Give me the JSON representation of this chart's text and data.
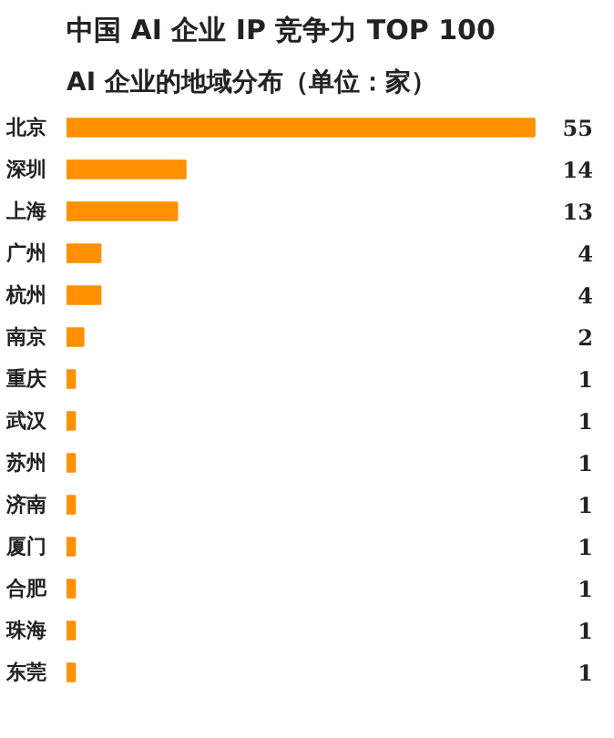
{
  "chart_data": {
    "type": "bar",
    "orientation": "horizontal",
    "title": "中国 AI 企业 IP 竞争力 TOP 100",
    "subtitle": "AI 企业的地域分布（单位：家）",
    "categories": [
      "北京",
      "深圳",
      "上海",
      "广州",
      "杭州",
      "南京",
      "重庆",
      "武汉",
      "苏州",
      "济南",
      "厦门",
      "合肥",
      "珠海",
      "东莞"
    ],
    "values": [
      55,
      14,
      13,
      4,
      4,
      2,
      1,
      1,
      1,
      1,
      1,
      1,
      1,
      1
    ],
    "color": "#ff9000",
    "data_labels": true,
    "grid": false
  }
}
